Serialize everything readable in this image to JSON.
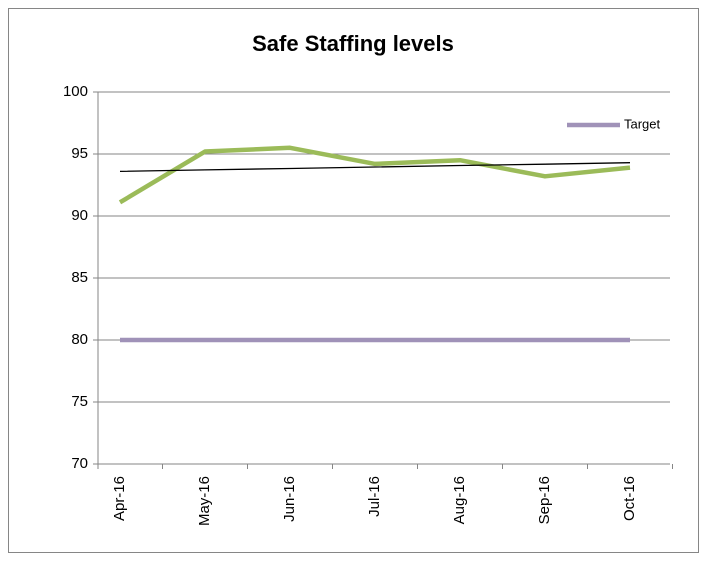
{
  "chart_data": {
    "type": "line",
    "title": "Safe Staffing levels",
    "categories": [
      "Apr-16",
      "May-16",
      "Jun-16",
      "Jul-16",
      "Aug-16",
      "Sep-16",
      "Oct-16"
    ],
    "series": [
      {
        "color": "#9bbb59",
        "values": [
          91.1,
          95.2,
          95.5,
          94.2,
          94.5,
          93.2,
          93.9
        ]
      },
      {
        "name": "Target",
        "color": "#a092b8",
        "values": [
          80,
          80,
          80,
          80,
          80,
          80,
          80
        ]
      },
      {
        "color": "#000000",
        "values": [
          93.6,
          93.72,
          93.83,
          93.95,
          94.07,
          94.18,
          94.3
        ]
      }
    ],
    "ylim": [
      70,
      100
    ],
    "yticks": [
      70,
      75,
      80,
      85,
      90,
      95,
      100
    ],
    "grid": true,
    "legend": "top-right"
  }
}
